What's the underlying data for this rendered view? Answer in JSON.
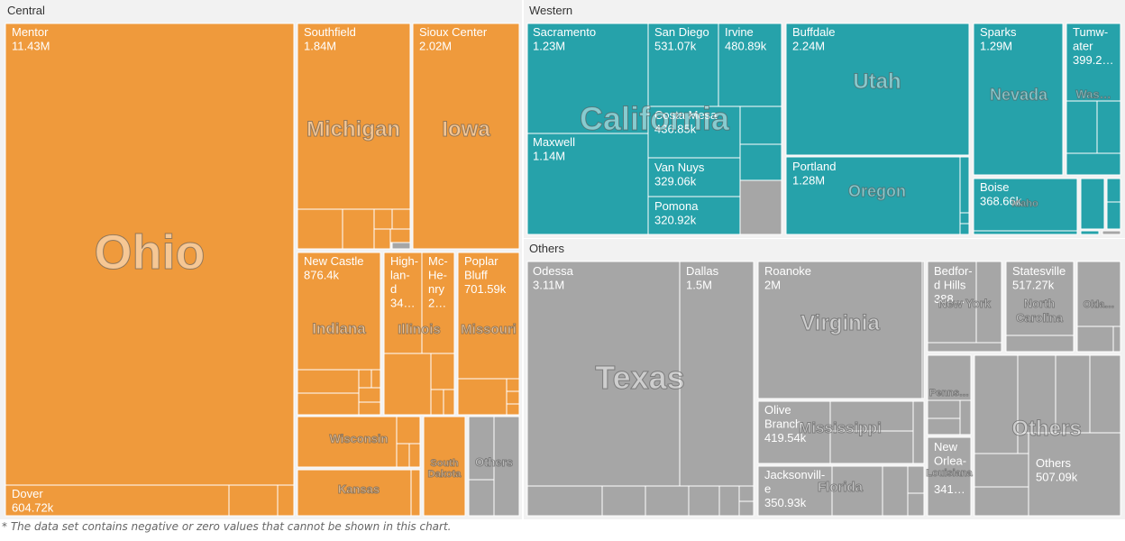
{
  "chart_data": {
    "type": "treemap",
    "colors": {
      "Central": "#ef9a3c",
      "Western": "#26a2aa",
      "Others": "#a6a6a6",
      "group_bg": "#f2f2f2"
    },
    "groups": [
      {
        "name": "Central",
        "states": [
          {
            "name": "Ohio",
            "cities": [
              {
                "name": "Mentor",
                "value": "11.43M"
              },
              {
                "name": "Dover",
                "value": "604.72k"
              }
            ]
          },
          {
            "name": "Michigan",
            "cities": [
              {
                "name": "Southfield",
                "value": "1.84M"
              }
            ]
          },
          {
            "name": "Iowa",
            "cities": [
              {
                "name": "Sioux Center",
                "value": "2.02M"
              }
            ]
          },
          {
            "name": "Indiana",
            "cities": [
              {
                "name": "New Castle",
                "value": "876.4k"
              }
            ]
          },
          {
            "name": "Illinois",
            "cities": [
              {
                "name": "High-lan-d",
                "value": "34…"
              },
              {
                "name": "Mc-He-nry",
                "value": "2…"
              }
            ]
          },
          {
            "name": "Missouri",
            "cities": [
              {
                "name": "Poplar Bluff",
                "value": "701.59k"
              }
            ]
          },
          {
            "name": "Wisconsin",
            "cities": []
          },
          {
            "name": "South Dakota",
            "cities": []
          },
          {
            "name": "Kansas",
            "cities": []
          },
          {
            "name": "Others",
            "cities": []
          }
        ]
      },
      {
        "name": "Western",
        "states": [
          {
            "name": "California",
            "cities": [
              {
                "name": "Sacramento",
                "value": "1.23M"
              },
              {
                "name": "Maxwell",
                "value": "1.14M"
              },
              {
                "name": "San Diego",
                "value": "531.07k"
              },
              {
                "name": "Irvine",
                "value": "480.89k"
              },
              {
                "name": "Costa Mesa",
                "value": "436.85k"
              },
              {
                "name": "Van Nuys",
                "value": "329.06k"
              },
              {
                "name": "Pomona",
                "value": "320.92k"
              }
            ]
          },
          {
            "name": "Utah",
            "cities": [
              {
                "name": "Buffdale",
                "value": "2.24M"
              }
            ]
          },
          {
            "name": "Oregon",
            "cities": [
              {
                "name": "Portland",
                "value": "1.28M"
              }
            ]
          },
          {
            "name": "Nevada",
            "cities": [
              {
                "name": "Sparks",
                "value": "1.29M"
              }
            ]
          },
          {
            "name": "Idaho",
            "cities": [
              {
                "name": "Boise",
                "value": "368.66k"
              }
            ]
          },
          {
            "name": "Was…",
            "cities": [
              {
                "name": "Tumw-ater",
                "value": "399.2…"
              }
            ]
          }
        ]
      },
      {
        "name": "Others",
        "states": [
          {
            "name": "Texas",
            "cities": [
              {
                "name": "Odessa",
                "value": "3.11M"
              },
              {
                "name": "Dallas",
                "value": "1.5M"
              }
            ]
          },
          {
            "name": "Virginia",
            "cities": [
              {
                "name": "Roanoke",
                "value": "2M"
              }
            ]
          },
          {
            "name": "Mississippi",
            "cities": [
              {
                "name": "Olive Branch",
                "value": "419.54k"
              }
            ]
          },
          {
            "name": "Florida",
            "cities": [
              {
                "name": "Jacksonvill-e",
                "value": "350.93k"
              }
            ]
          },
          {
            "name": "New York",
            "cities": [
              {
                "name": "Bedfor-d Hills",
                "value": "388…"
              }
            ]
          },
          {
            "name": "North Carolina",
            "cities": [
              {
                "name": "Statesville",
                "value": "517.27k"
              }
            ]
          },
          {
            "name": "Okla…",
            "cities": []
          },
          {
            "name": "Penns…",
            "cities": []
          },
          {
            "name": "Louisiana",
            "cities": [
              {
                "name": "New Orlea-",
                "value": "341…"
              }
            ]
          },
          {
            "name": "Others",
            "cities": [
              {
                "name": "Others",
                "value": "507.09k"
              }
            ]
          }
        ]
      }
    ]
  },
  "footnote": "* The data set contains negative or zero values that cannot be shown in this chart."
}
